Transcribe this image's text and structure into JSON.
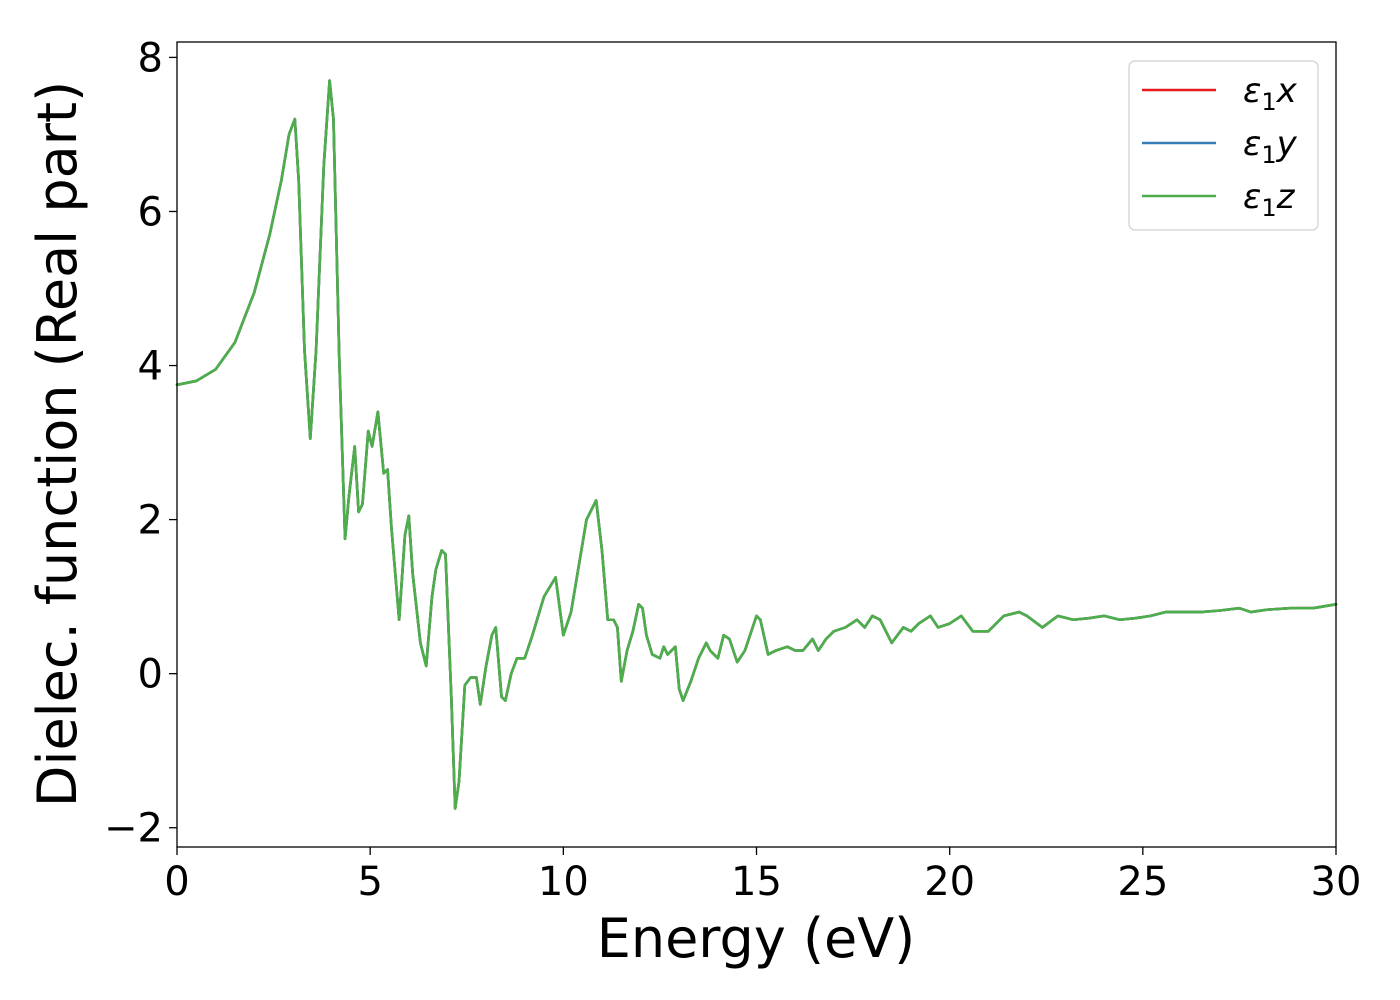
{
  "chart_data": {
    "type": "line",
    "xlabel": "Energy (eV)",
    "ylabel": "Dielec. function (Real part)",
    "xlim": [
      0,
      30
    ],
    "ylim": [
      -2.25,
      8.2
    ],
    "xticks": [
      0,
      5,
      10,
      15,
      20,
      25,
      30
    ],
    "yticks": [
      -2,
      0,
      2,
      4,
      6,
      8
    ],
    "ytick_labels": [
      "−2",
      "0",
      "2",
      "4",
      "6",
      "8"
    ],
    "grid": false,
    "legend_position": "top-right",
    "x": [
      0,
      0.5,
      1.0,
      1.5,
      2.0,
      2.4,
      2.7,
      2.9,
      3.05,
      3.15,
      3.3,
      3.45,
      3.6,
      3.8,
      3.95,
      4.05,
      4.2,
      4.35,
      4.45,
      4.6,
      4.7,
      4.8,
      4.95,
      5.05,
      5.2,
      5.35,
      5.45,
      5.55,
      5.75,
      5.9,
      6.0,
      6.1,
      6.3,
      6.45,
      6.6,
      6.7,
      6.85,
      6.95,
      7.1,
      7.2,
      7.3,
      7.45,
      7.6,
      7.75,
      7.85,
      8.0,
      8.15,
      8.25,
      8.4,
      8.5,
      8.65,
      8.8,
      9.0,
      9.2,
      9.5,
      9.8,
      10.0,
      10.2,
      10.4,
      10.6,
      10.85,
      11.0,
      11.15,
      11.3,
      11.4,
      11.5,
      11.65,
      11.8,
      11.95,
      12.05,
      12.15,
      12.3,
      12.5,
      12.6,
      12.7,
      12.8,
      12.9,
      13.0,
      13.1,
      13.3,
      13.5,
      13.7,
      13.8,
      14.0,
      14.15,
      14.3,
      14.5,
      14.7,
      15.0,
      15.1,
      15.3,
      15.5,
      15.8,
      16.0,
      16.2,
      16.45,
      16.6,
      16.8,
      17.0,
      17.3,
      17.6,
      17.8,
      18.0,
      18.2,
      18.5,
      18.8,
      19.0,
      19.2,
      19.5,
      19.7,
      20.0,
      20.3,
      20.6,
      21.0,
      21.4,
      21.8,
      22.0,
      22.4,
      22.8,
      23.2,
      23.6,
      24.0,
      24.4,
      24.8,
      25.2,
      25.6,
      26.0,
      26.5,
      27.0,
      27.5,
      27.8,
      28.2,
      28.8,
      29.4,
      30.0
    ],
    "series": [
      {
        "name": "ε₁x",
        "color": "#e41a1c",
        "y": [
          3.75,
          3.8,
          3.95,
          4.3,
          4.95,
          5.7,
          6.4,
          7.0,
          7.2,
          6.4,
          4.2,
          3.05,
          4.2,
          6.6,
          7.7,
          7.2,
          4.1,
          1.75,
          2.3,
          2.95,
          2.1,
          2.2,
          3.15,
          2.95,
          3.4,
          2.6,
          2.65,
          1.9,
          0.7,
          1.8,
          2.05,
          1.3,
          0.4,
          0.1,
          1.0,
          1.35,
          1.6,
          1.55,
          -0.3,
          -1.75,
          -1.4,
          -0.15,
          -0.05,
          -0.05,
          -0.4,
          0.1,
          0.5,
          0.6,
          -0.3,
          -0.35,
          0.0,
          0.2,
          0.2,
          0.5,
          1.0,
          1.25,
          0.5,
          0.8,
          1.4,
          2.0,
          2.25,
          1.6,
          0.7,
          0.7,
          0.6,
          -0.1,
          0.3,
          0.55,
          0.9,
          0.85,
          0.5,
          0.25,
          0.2,
          0.35,
          0.25,
          0.3,
          0.35,
          -0.2,
          -0.35,
          -0.1,
          0.2,
          0.4,
          0.3,
          0.2,
          0.5,
          0.45,
          0.15,
          0.3,
          0.75,
          0.7,
          0.25,
          0.3,
          0.35,
          0.3,
          0.3,
          0.45,
          0.3,
          0.45,
          0.55,
          0.6,
          0.7,
          0.6,
          0.75,
          0.7,
          0.4,
          0.6,
          0.55,
          0.65,
          0.75,
          0.6,
          0.65,
          0.75,
          0.55,
          0.55,
          0.75,
          0.8,
          0.75,
          0.6,
          0.75,
          0.7,
          0.72,
          0.75,
          0.7,
          0.72,
          0.75,
          0.8,
          0.8,
          0.8,
          0.82,
          0.85,
          0.8,
          0.83,
          0.85,
          0.85,
          0.9
        ]
      },
      {
        "name": "ε₁y",
        "color": "#377eb8",
        "same_as": "ε₁x"
      },
      {
        "name": "ε₁z",
        "color": "#4daf4a",
        "same_as": "ε₁x"
      }
    ]
  },
  "legend": {
    "entries": [
      {
        "symbol": "ε",
        "sub": "1",
        "suffix": "x",
        "color": "#e41a1c"
      },
      {
        "symbol": "ε",
        "sub": "1",
        "suffix": "y",
        "color": "#377eb8"
      },
      {
        "symbol": "ε",
        "sub": "1",
        "suffix": "z",
        "color": "#4daf4a"
      }
    ]
  }
}
